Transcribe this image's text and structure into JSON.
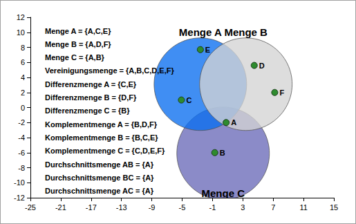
{
  "chart_data": {
    "type": "venn",
    "xlim": [
      -25,
      15
    ],
    "xticks": [
      -25,
      -21,
      -17,
      -13,
      -9,
      -5,
      -1,
      3,
      7,
      11,
      15
    ],
    "ylim": [
      -12,
      12
    ],
    "yticks": [
      -12,
      -10,
      -8,
      -6,
      -4,
      -2,
      0,
      2,
      4,
      6,
      8,
      10,
      12
    ],
    "sets": [
      {
        "name": "Menge C",
        "color": "#6a6ab8",
        "center": [
          0.4,
          -6.1
        ],
        "radius": 6.1
      },
      {
        "name": "Menge A",
        "color": "#0a6ef0",
        "center": [
          -2.6,
          3.1
        ],
        "radius": 6.1
      },
      {
        "name": "Menge B",
        "color": "#d4d4d4",
        "center": [
          3.4,
          3.1
        ],
        "radius": 6.1
      }
    ],
    "points": {
      "color": "#2e8b2e",
      "labels": [
        "A",
        "B",
        "C",
        "D",
        "E",
        "F"
      ],
      "x": [
        0.8,
        -0.7,
        -5.1,
        4.5,
        -2.6,
        7.2
      ],
      "y": [
        -2,
        -6,
        1,
        5.6,
        7.7,
        2
      ]
    },
    "annotations": [
      "Menge A = {A,C,E}",
      "Menge B = {A,D,F}",
      "Menge C = {A,B}",
      "Vereinigungsmenge = {A,B,C,D,E,F}",
      "Differenzmenge A = {C,E}",
      "Differenzmenge B = {D,F}",
      "Differenzmenge C = {B}",
      "Komplementmenge A = {B,D,F}",
      "Komplementmenge B = {B,C,E}",
      "Komplementmenge C = {C,D,E,F}",
      "Durchschnittsmenge AB = {A}",
      "Durchschnittsmenge BC = {A}",
      "Durchschnittsmenge AC = {A}"
    ]
  }
}
